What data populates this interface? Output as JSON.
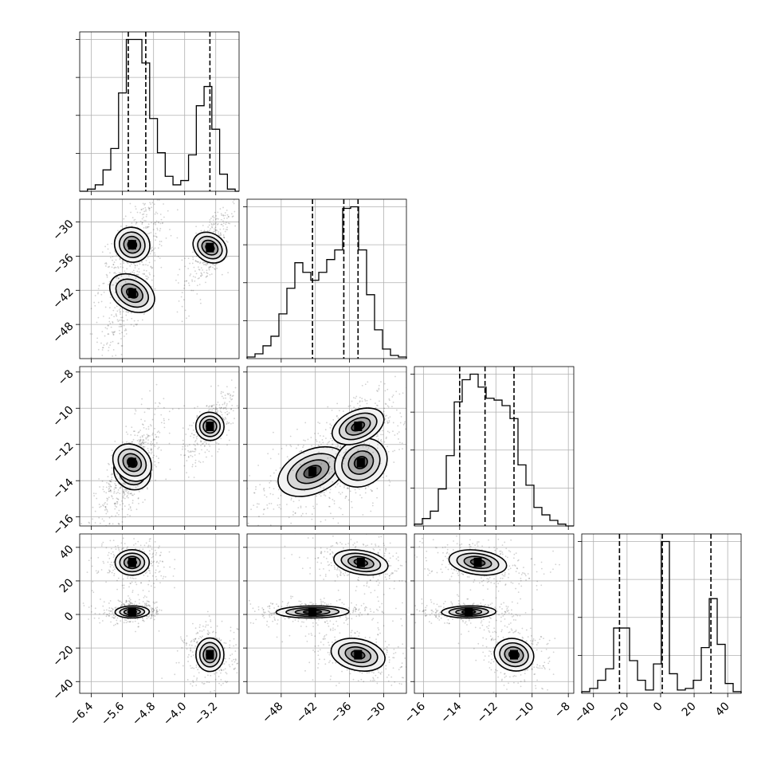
{
  "chart_data": {
    "type": "corner",
    "parameters": [
      {
        "range": [
          -6.7,
          -2.6
        ],
        "ticks": [
          -6.4,
          -5.6,
          -4.8,
          -4.0,
          -3.2
        ],
        "tick_labels": [
          "−6.4",
          "−5.6",
          "−4.8",
          "−4.0",
          "−3.2"
        ]
      },
      {
        "range": [
          -54,
          -26
        ],
        "ticks": [
          -48,
          -42,
          -36,
          -30
        ],
        "tick_labels": [
          "−48",
          "−42",
          "−36",
          "−30"
        ]
      },
      {
        "range": [
          -16.5,
          -7.7
        ],
        "ticks": [
          -16,
          -14,
          -12,
          -10,
          -8
        ],
        "tick_labels": [
          "−16",
          "−14",
          "−12",
          "−10",
          "−8"
        ]
      },
      {
        "range": [
          -47,
          48
        ],
        "ticks": [
          -40,
          -20,
          0,
          20,
          40
        ],
        "tick_labels": [
          "−40",
          "−20",
          "0",
          "20",
          "40"
        ]
      }
    ],
    "marginals": [
      {
        "param": 0,
        "quantiles": [
          -5.45,
          -5.0,
          -3.35
        ],
        "bins": [
          -6.7,
          -6.5,
          -6.3,
          -6.1,
          -5.9,
          -5.7,
          -5.5,
          -5.3,
          -5.1,
          -4.9,
          -4.7,
          -4.5,
          -4.3,
          -4.1,
          -3.9,
          -3.7,
          -3.5,
          -3.3,
          -3.1,
          -2.9,
          -2.7,
          -2.6
        ],
        "counts": [
          0,
          1,
          3,
          10,
          20,
          46,
          71,
          71,
          60,
          34,
          18,
          7,
          3,
          5,
          17,
          40,
          49,
          29,
          8,
          1,
          0
        ]
      },
      {
        "param": 1,
        "quantiles": [
          -42.5,
          -37.0,
          -34.5
        ],
        "bins": [
          -54,
          -52.6,
          -51.2,
          -49.8,
          -48.4,
          -47,
          -45.6,
          -44.2,
          -42.8,
          -41.4,
          -40,
          -38.6,
          -37.2,
          -35.8,
          -34.4,
          -33,
          -31.6,
          -30.2,
          -28.8,
          -27.4,
          -26
        ],
        "counts": [
          1,
          3,
          8,
          14,
          28,
          44,
          60,
          54,
          49,
          54,
          62,
          68,
          94,
          95,
          68,
          40,
          18,
          6,
          2,
          1
        ]
      },
      {
        "param": 2,
        "quantiles": [
          -14.0,
          -12.6,
          -11.0
        ],
        "bins": [
          -16.5,
          -16.06,
          -15.62,
          -15.18,
          -14.74,
          -14.3,
          -13.86,
          -13.42,
          -12.98,
          -12.54,
          -12.1,
          -11.66,
          -11.22,
          -10.78,
          -10.34,
          -9.9,
          -9.46,
          -9.02,
          -8.58,
          -8.14,
          -7.7
        ],
        "counts": [
          1,
          4,
          8,
          20,
          38,
          67,
          79,
          82,
          75,
          69,
          68,
          65,
          58,
          33,
          22,
          10,
          6,
          3,
          1,
          0
        ]
      },
      {
        "param": 3,
        "quantiles": [
          -24.5,
          1.0,
          30.0
        ],
        "bins": [
          -47,
          -42.25,
          -37.5,
          -32.75,
          -28,
          -23.25,
          -18.5,
          -13.75,
          -9,
          -4.25,
          0.5,
          5.25,
          10,
          14.75,
          19.5,
          24.25,
          29,
          33.75,
          38.5,
          43.25,
          48
        ],
        "counts": [
          1,
          3,
          8,
          15,
          40,
          40,
          20,
          8,
          2,
          18,
          93,
          12,
          2,
          3,
          8,
          28,
          58,
          30,
          6,
          1
        ]
      }
    ],
    "joint_clusters": [
      {
        "center": [
          -5.35,
          -42.5,
          -13.5,
          1.5
        ],
        "spread": [
          0.22,
          3.2,
          0.75,
          1.8
        ]
      },
      {
        "center": [
          -5.35,
          -34.0,
          -13.0,
          31.0
        ],
        "spread": [
          0.22,
          2.4,
          0.8,
          3.8
        ]
      },
      {
        "center": [
          -3.35,
          -34.5,
          -11.0,
          -24.0
        ],
        "spread": [
          0.18,
          2.4,
          0.55,
          5.0
        ]
      }
    ]
  }
}
